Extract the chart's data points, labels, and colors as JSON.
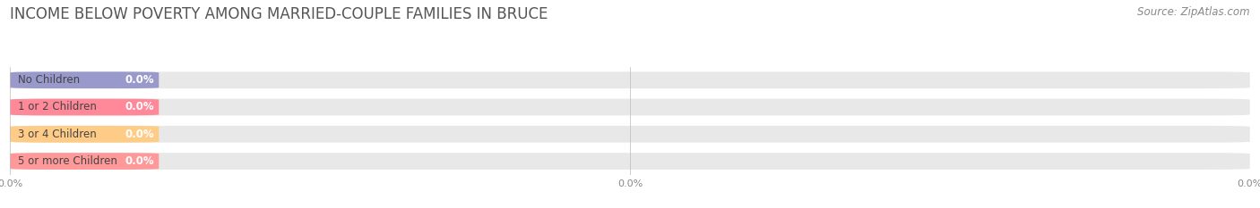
{
  "title": "INCOME BELOW POVERTY AMONG MARRIED-COUPLE FAMILIES IN BRUCE",
  "source_text": "Source: ZipAtlas.com",
  "categories": [
    "No Children",
    "1 or 2 Children",
    "3 or 4 Children",
    "5 or more Children"
  ],
  "values": [
    0.0,
    0.0,
    0.0,
    0.0
  ],
  "bar_colors": [
    "#9999cc",
    "#ff8899",
    "#ffcc88",
    "#ff9999"
  ],
  "xlim": [
    0,
    1.0
  ],
  "background_color": "#ffffff",
  "bar_bg_color": "#e8e8e8",
  "title_fontsize": 12,
  "label_fontsize": 8.5,
  "tick_fontsize": 8,
  "source_fontsize": 8.5
}
